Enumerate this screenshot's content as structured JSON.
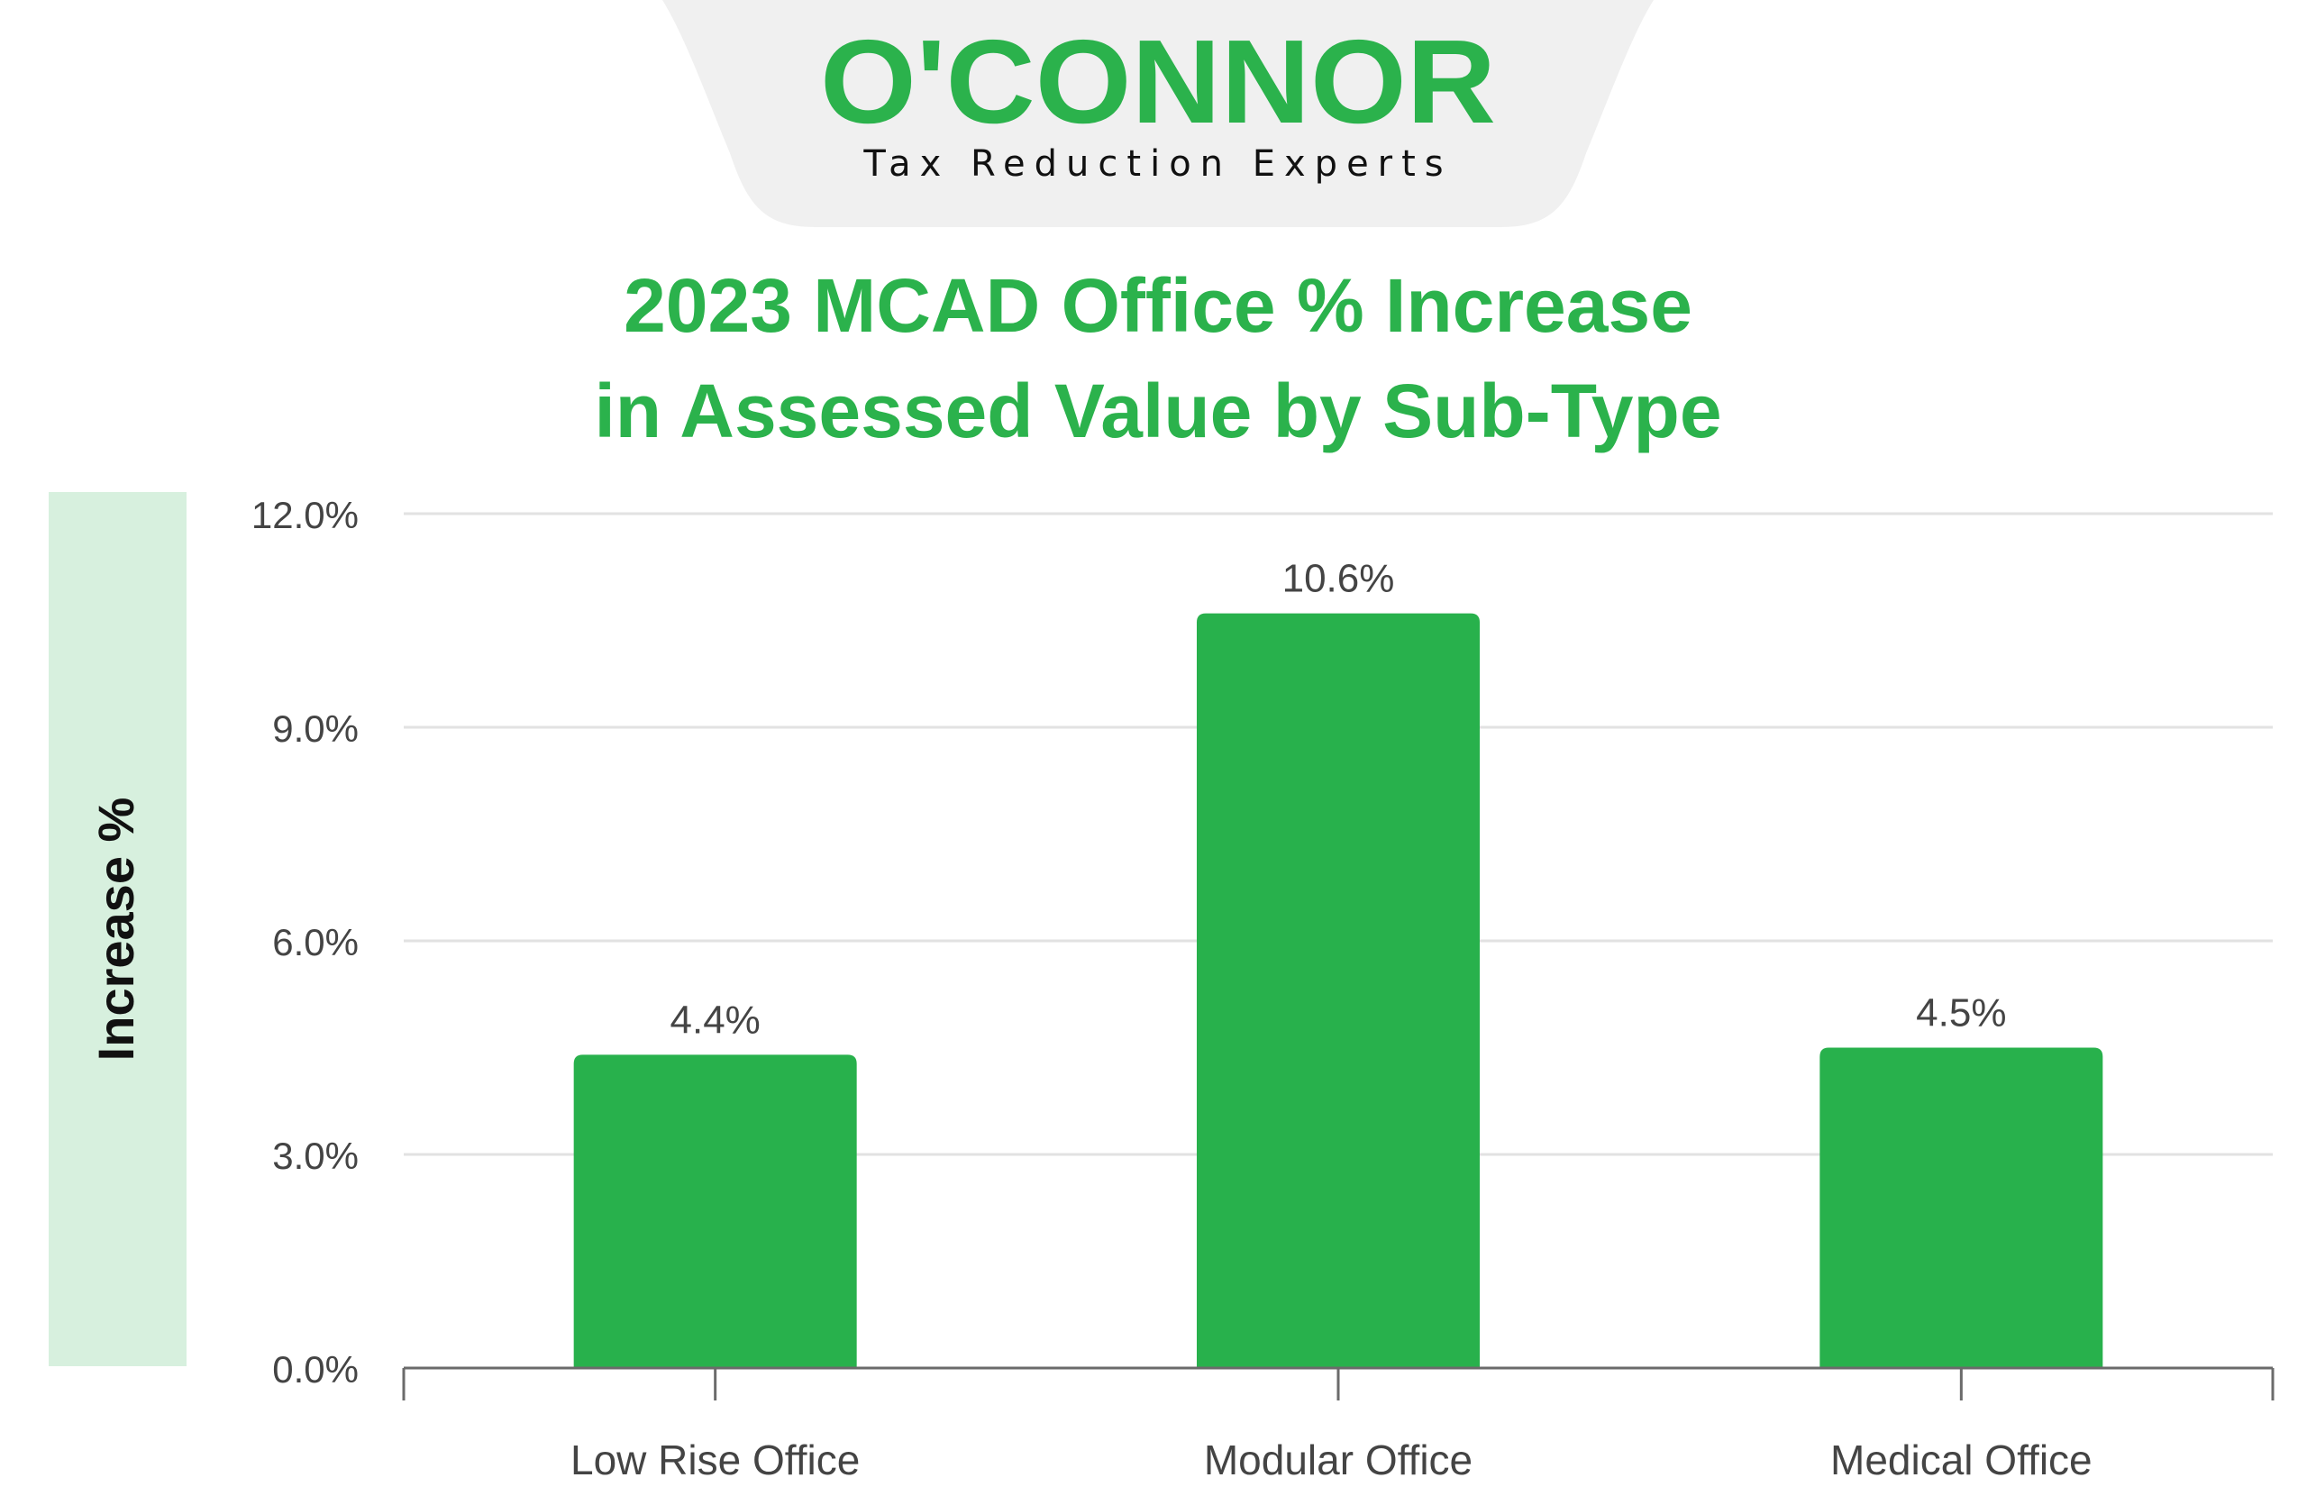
{
  "brand": {
    "name": "O'CONNOR",
    "tagline": "Tax Reduction Experts",
    "logo_color": "#2bb24c",
    "banner_color": "#f0f0f0"
  },
  "chart_data": {
    "type": "bar",
    "title_line1": "2023 MCAD Office % Increase",
    "title_line2": "in Assessed Value by Sub-Type",
    "ylabel": "Increase %",
    "xlabel": "",
    "categories": [
      "Low Rise Office",
      "Modular Office",
      "Medical Office"
    ],
    "values": [
      4.4,
      10.6,
      4.5
    ],
    "value_labels": [
      "4.4%",
      "10.6%",
      "4.5%"
    ],
    "ylim": [
      0,
      12
    ],
    "yticks": [
      0,
      3,
      6,
      9,
      12
    ],
    "ytick_labels": [
      "0.0%",
      "3.0%",
      "6.0%",
      "9.0%",
      "12.0%"
    ],
    "grid": true,
    "bar_color": "#28b14c",
    "title_color": "#2bb24c",
    "ylabel_band_color": "#d7f0de",
    "grid_color": "#e2e2e2",
    "axis_color": "#6b6b6b",
    "text_color": "#444444"
  }
}
